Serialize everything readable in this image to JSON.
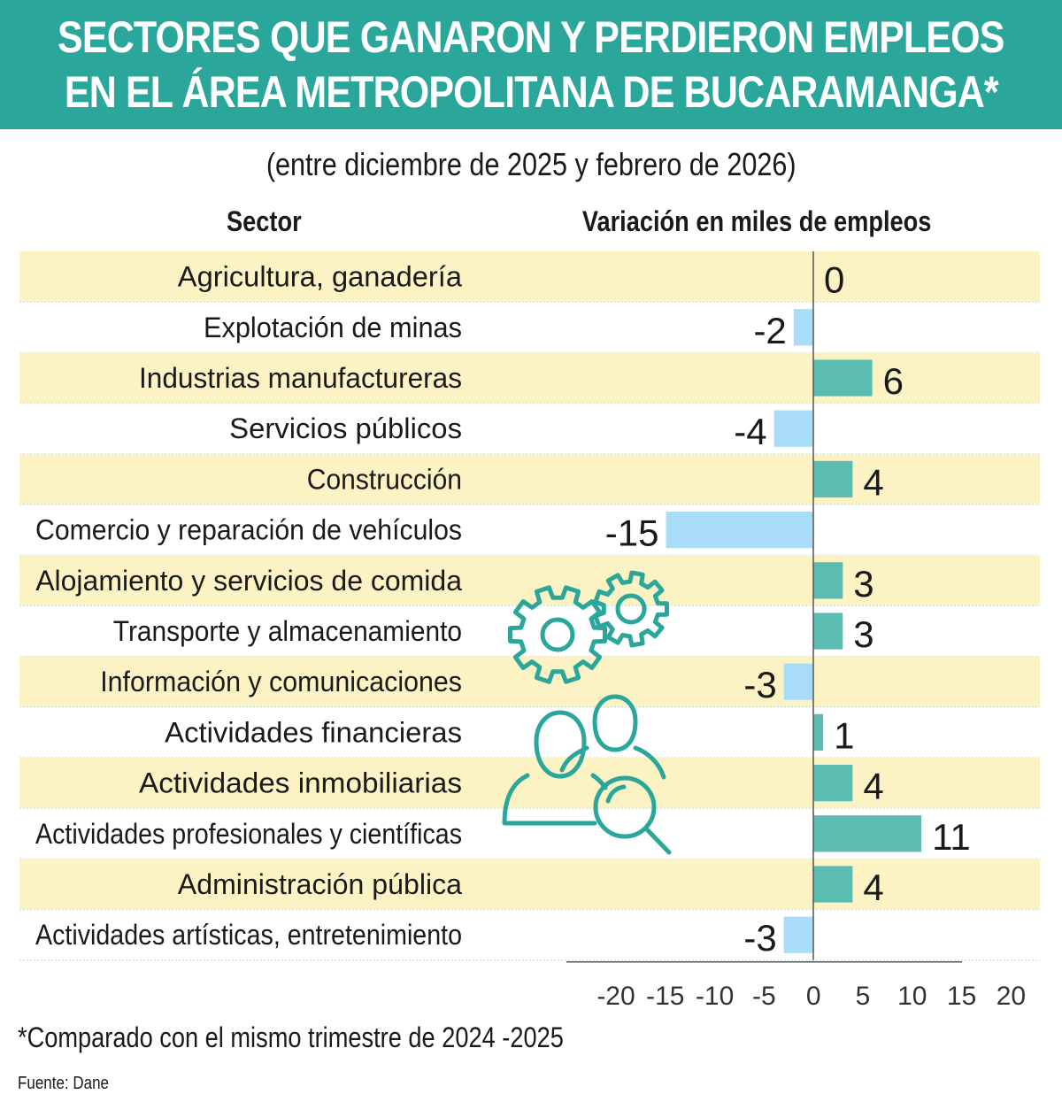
{
  "header": {
    "title_line1": "SECTORES QUE GANARON Y PERDIERON EMPLEOS",
    "title_line2": "EN EL ÁREA METROPOLITANA DE BUCARAMANGA*",
    "subtitle": "(entre diciembre  de 2025 y febrero de 2026)"
  },
  "columns": {
    "sector": "Sector",
    "variation": "Variación en miles de empleos"
  },
  "footnote": "*Comparado con el mismo trimestre de 2024 -2025",
  "source": "Fuente: Dane",
  "colors": {
    "banner": "#2aa69a",
    "band": "#fbf3c4",
    "positive_bar": "#5bbcb2",
    "negative_bar": "#a9dcf7",
    "icon_stroke": "#2aa69a"
  },
  "icons": [
    "gears-icon",
    "people-search-icon"
  ],
  "chart_data": {
    "type": "bar",
    "orientation": "horizontal",
    "categories": [
      "Agricultura, ganadería",
      "Explotación de minas",
      "Industrias manufactureras",
      "Servicios públicos",
      "Construcción",
      "Comercio y reparación de vehículos",
      "Alojamiento y servicios de comida",
      "Transporte y almacenamiento",
      "Información y comunicaciones",
      "Actividades financieras",
      "Actividades inmobiliarias",
      "Actividades profesionales y científicas",
      "Administración pública",
      "Actividades artísticas, entretenimiento"
    ],
    "values": [
      0,
      -2,
      6,
      -4,
      4,
      -15,
      3,
      3,
      -3,
      1,
      4,
      11,
      4,
      -3
    ],
    "value_labels": [
      "0",
      "-2",
      "6",
      "-4",
      "4",
      "-15",
      "3",
      "3",
      "-3",
      "1",
      "4",
      "11",
      "4",
      "-3"
    ],
    "xlim": [
      -20,
      20
    ],
    "x_ticks": [
      "-20",
      "-15",
      "-10",
      "-5",
      "0",
      "5",
      "10",
      "15",
      "20"
    ],
    "x_tick_values": [
      -20,
      -15,
      -10,
      -5,
      0,
      5,
      10,
      15,
      20
    ]
  }
}
